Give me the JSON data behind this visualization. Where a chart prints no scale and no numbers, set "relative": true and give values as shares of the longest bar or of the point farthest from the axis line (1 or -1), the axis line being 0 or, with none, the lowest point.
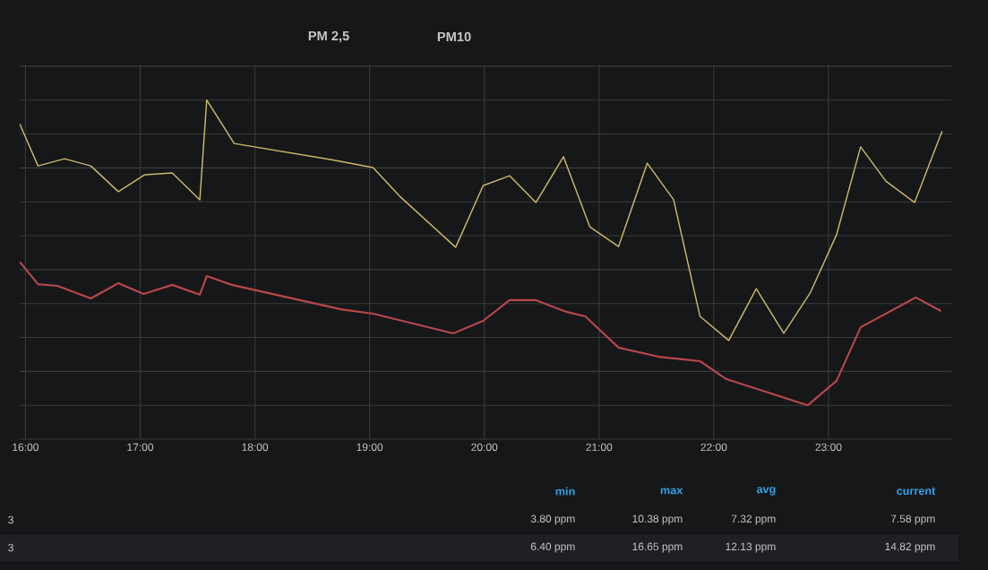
{
  "chart_data": {
    "type": "line",
    "relative": true,
    "grid": true,
    "marker": "none",
    "line_style": "solid",
    "xlim": [
      15.95,
      24.07
    ],
    "xticks": [
      {
        "value": 16,
        "label": "16:00"
      },
      {
        "value": 17,
        "label": "17:00"
      },
      {
        "value": 18,
        "label": "18:00"
      },
      {
        "value": 19,
        "label": "19:00"
      },
      {
        "value": 20,
        "label": "20:00"
      },
      {
        "value": 21,
        "label": "21:00"
      },
      {
        "value": 22,
        "label": "22:00"
      },
      {
        "value": 23,
        "label": "23:00"
      }
    ],
    "series": [
      {
        "color": "#b8474a",
        "x": [
          15.95,
          16.11,
          16.28,
          16.57,
          16.81,
          17.03,
          17.28,
          17.52,
          17.58,
          17.8,
          18.75,
          19.03,
          19.73,
          19.99,
          20.22,
          20.45,
          20.72,
          20.88,
          21.17,
          21.52,
          21.88,
          22.11,
          22.82,
          23.07,
          23.28,
          23.76,
          23.98
        ],
        "values": [
          0.523,
          0.457,
          0.452,
          0.415,
          0.46,
          0.428,
          0.455,
          0.426,
          0.481,
          0.455,
          0.383,
          0.37,
          0.312,
          0.349,
          0.41,
          0.41,
          0.375,
          0.362,
          0.27,
          0.243,
          0.23,
          0.177,
          0.1,
          0.172,
          0.33,
          0.418,
          0.378
        ]
      },
      {
        "color": "#cbb865",
        "x": [
          15.95,
          16.11,
          16.34,
          16.57,
          16.81,
          17.04,
          17.28,
          17.52,
          17.58,
          17.82,
          18.67,
          19.03,
          19.27,
          19.75,
          19.99,
          20.22,
          20.45,
          20.69,
          20.92,
          21.17,
          21.42,
          21.65,
          21.88,
          22.13,
          22.37,
          22.61,
          22.84,
          23.07,
          23.28,
          23.5,
          23.75,
          23.99
        ],
        "values": [
          0.93,
          0.806,
          0.827,
          0.806,
          0.73,
          0.78,
          0.785,
          0.706,
          1,
          0.872,
          0.824,
          0.801,
          0.714,
          0.566,
          0.748,
          0.777,
          0.698,
          0.833,
          0.626,
          0.568,
          0.814,
          0.706,
          0.362,
          0.291,
          0.444,
          0.312,
          0.431,
          0.603,
          0.862,
          0.761,
          0.698,
          0.909
        ]
      }
    ],
    "annotations": [
      "PM 2,5",
      "PM10",
      "min",
      "max",
      "avg",
      "current",
      "3",
      "3.80 ppm",
      "10.38 ppm",
      "7.32 ppm",
      "7.58 ppm",
      "3",
      "6.40 ppm",
      "16.65 ppm",
      "12.13 ppm",
      "14.82 ppm"
    ]
  }
}
